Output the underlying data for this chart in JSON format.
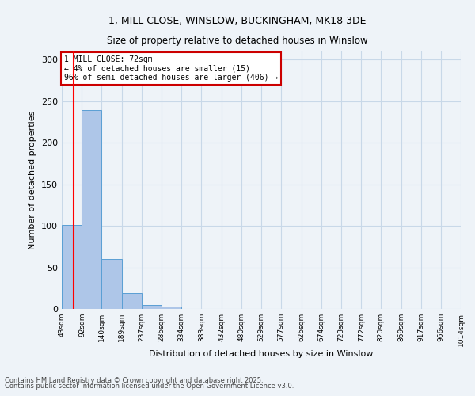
{
  "title_line1": "1, MILL CLOSE, WINSLOW, BUCKINGHAM, MK18 3DE",
  "title_line2": "Size of property relative to detached houses in Winslow",
  "xlabel": "Distribution of detached houses by size in Winslow",
  "ylabel": "Number of detached properties",
  "bin_edges": [
    43,
    92,
    140,
    189,
    237,
    286,
    334,
    383,
    432,
    480,
    529,
    577,
    626,
    674,
    723,
    772,
    820,
    869,
    917,
    966,
    1014
  ],
  "bar_heights": [
    101,
    239,
    60,
    19,
    5,
    3,
    0,
    0,
    0,
    0,
    0,
    0,
    0,
    0,
    0,
    0,
    0,
    0,
    0,
    0
  ],
  "bar_color": "#aec6e8",
  "bar_edge_color": "#5a9fd4",
  "grid_color": "#c8d8e8",
  "background_color": "#eef3f8",
  "red_line_x": 72,
  "annotation_text": "1 MILL CLOSE: 72sqm\n← 4% of detached houses are smaller (15)\n96% of semi-detached houses are larger (406) →",
  "annotation_box_color": "#ffffff",
  "annotation_border_color": "#cc0000",
  "ylim": [
    0,
    310
  ],
  "yticks": [
    0,
    50,
    100,
    150,
    200,
    250,
    300
  ],
  "footnote_line1": "Contains HM Land Registry data © Crown copyright and database right 2025.",
  "footnote_line2": "Contains public sector information licensed under the Open Government Licence v3.0."
}
